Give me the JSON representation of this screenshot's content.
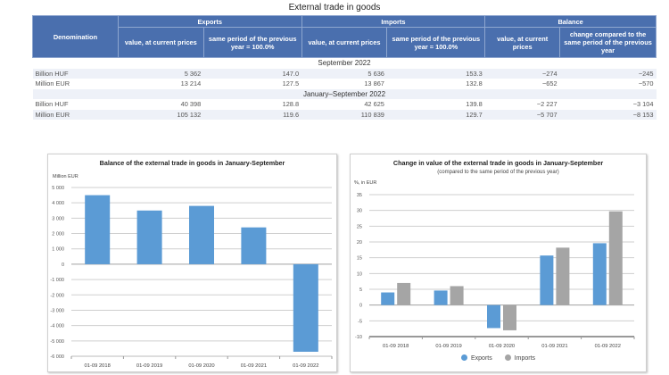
{
  "table": {
    "title": "External trade in goods",
    "headers": {
      "denomination": "Denomination",
      "groups": [
        "Exports",
        "Imports",
        "Balance"
      ],
      "sub": [
        "value, at current prices",
        "same period of the previous year = 100.0%",
        "value, at current prices",
        "same period of the previous year = 100.0%",
        "value, at current prices",
        "change compared to the same period of the previous year"
      ]
    },
    "sections": [
      {
        "label": "September 2022",
        "rows": [
          {
            "unit": "Billion HUF",
            "values": [
              "5 362",
              "147.0",
              "5 636",
              "153.3",
              "−274",
              "−245"
            ]
          },
          {
            "unit": "Million EUR",
            "values": [
              "13 214",
              "127.5",
              "13 867",
              "132.8",
              "−652",
              "−570"
            ]
          }
        ]
      },
      {
        "label": "January–September 2022",
        "rows": [
          {
            "unit": "Billion HUF",
            "values": [
              "40 398",
              "128.8",
              "42 625",
              "139.8",
              "−2 227",
              "−3 104"
            ]
          },
          {
            "unit": "Million EUR",
            "values": [
              "105 132",
              "119.6",
              "110 839",
              "129.7",
              "−5 707",
              "−8 153"
            ]
          }
        ]
      }
    ]
  },
  "colors": {
    "header_bg": "#4a6fae",
    "exports": "#5b9bd5",
    "imports": "#a5a5a5",
    "stripe": "#eef1f8"
  },
  "chart_data": [
    {
      "type": "bar",
      "title": "Balance of the external trade in goods in January-September",
      "ylabel": "Million EUR",
      "xlabel": "",
      "categories": [
        "01-09 2018",
        "01-09 2019",
        "01-09 2020",
        "01-09 2021",
        "01-09 2022"
      ],
      "values": [
        4500,
        3500,
        3800,
        2400,
        -5707
      ],
      "ylim": [
        -6000,
        5000
      ],
      "yticks": [
        5000,
        4000,
        3000,
        2000,
        1000,
        0,
        -1000,
        -2000,
        -3000,
        -4000,
        -5000,
        -6000
      ],
      "ytick_labels": [
        "5 000",
        "4 000",
        "3 000",
        "2 000",
        "1 000",
        "0",
        "-1 000",
        "-2 000",
        "-3 000",
        "-4 000",
        "-5 000",
        "-6 000"
      ],
      "grid": true,
      "legend": "none"
    },
    {
      "type": "bar",
      "title": "Change in value of the external trade in goods in January-September",
      "subtitle": "(compared to the same period of the previous year)",
      "ylabel": "%, in EUR",
      "xlabel": "",
      "categories": [
        "01-09 2018",
        "01-09 2019",
        "01-09 2020",
        "01-09 2021",
        "01-09 2022"
      ],
      "series": [
        {
          "name": "Exports",
          "values": [
            4.0,
            4.6,
            -7.3,
            15.7,
            19.6
          ]
        },
        {
          "name": "Imports",
          "values": [
            7.0,
            6.0,
            -8.0,
            18.2,
            29.7
          ]
        }
      ],
      "ylim": [
        -10,
        35
      ],
      "yticks": [
        35,
        30,
        25,
        20,
        15,
        10,
        5,
        0,
        -5,
        -10
      ],
      "ytick_labels": [
        "35",
        "30",
        "25",
        "20",
        "15",
        "10",
        "5",
        "0",
        "-5",
        "-10"
      ],
      "grid": true,
      "legend": "bottom"
    }
  ]
}
